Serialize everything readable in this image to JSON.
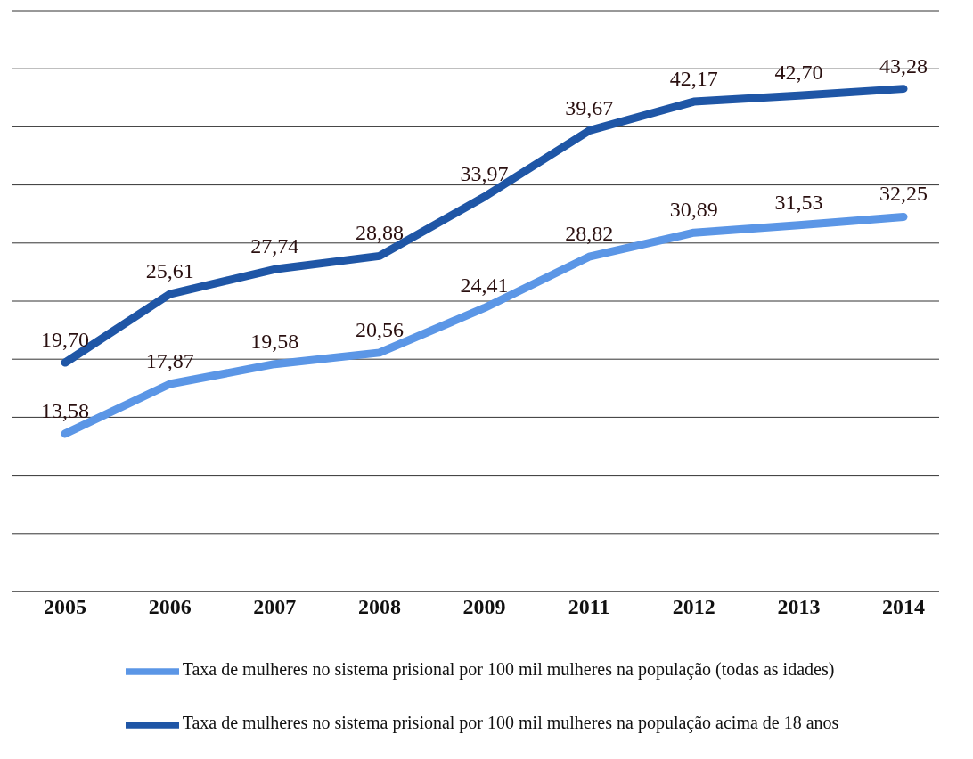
{
  "chart_data": {
    "type": "line",
    "categories": [
      "2005",
      "2006",
      "2007",
      "2008",
      "2009",
      "2011",
      "2012",
      "2013",
      "2014"
    ],
    "series": [
      {
        "name": "Taxa de mulheres no sistema prisional por 100 mil mulheres na população acima de 18 anos",
        "color": "#1f56a6",
        "values": [
          19.7,
          25.61,
          27.74,
          28.88,
          33.97,
          39.67,
          42.17,
          42.7,
          43.28
        ],
        "value_labels": [
          "19,70",
          "25,61",
          "27,74",
          "28,88",
          "33,97",
          "39,67",
          "42,17",
          "42,70",
          "43,28"
        ]
      },
      {
        "name": "Taxa de mulheres no sistema prisional por 100 mil mulheres na população (todas as idades)",
        "color": "#5b96e6",
        "values": [
          13.58,
          17.87,
          19.58,
          20.56,
          24.41,
          28.82,
          30.89,
          31.53,
          32.25
        ],
        "value_labels": [
          "13,58",
          "17,87",
          "19,58",
          "20,56",
          "24,41",
          "28,82",
          "30,89",
          "31,53",
          "32,25"
        ]
      }
    ],
    "ylim": [
      0,
      50
    ],
    "yticks": [
      {
        "value": 0,
        "label": null
      },
      {
        "value": 5,
        "label": null
      },
      {
        "value": 10,
        "label": null
      },
      {
        "value": 15,
        "label": null
      },
      {
        "value": 20,
        "label": null
      },
      {
        "value": 25,
        "label": null
      },
      {
        "value": 30,
        "label": null
      },
      {
        "value": 35,
        "label": null
      },
      {
        "value": 40,
        "label": null
      },
      {
        "value": 45,
        "label": null
      },
      {
        "value": 50,
        "label": null
      }
    ],
    "grid": "y",
    "legend": "bottom",
    "tick_labels": "x",
    "marker": "none",
    "line_style": "solid"
  }
}
